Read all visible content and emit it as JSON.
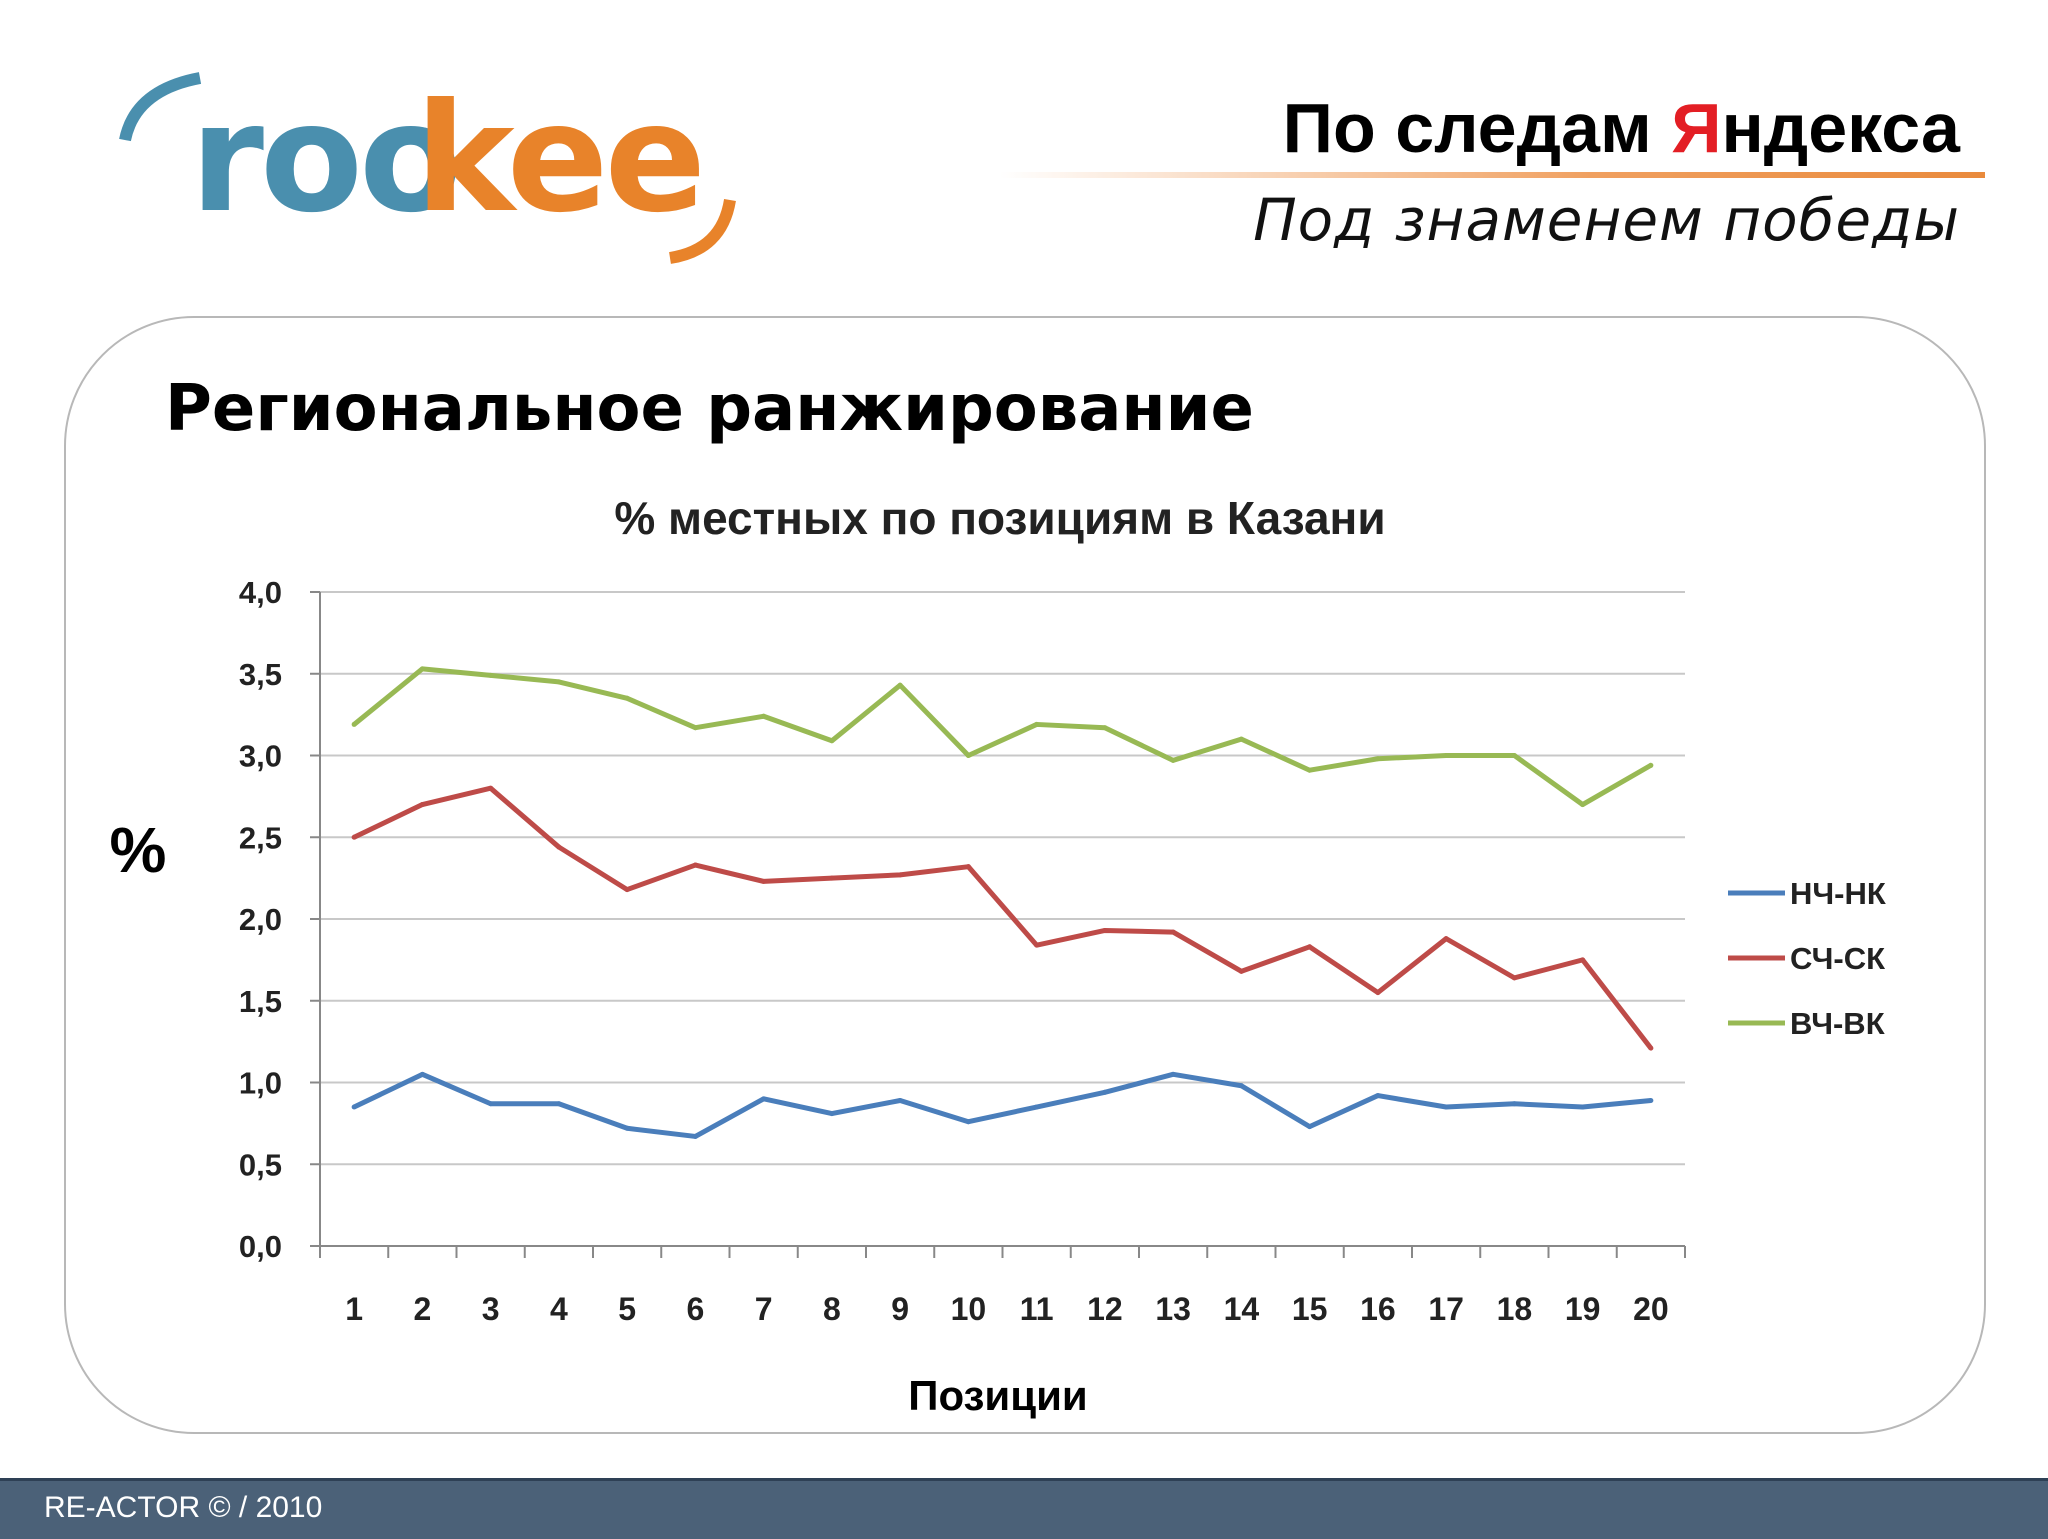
{
  "logo": {
    "text_part1": "roo",
    "text_part2": "kee",
    "color_blue": "#4a8fae",
    "color_orange": "#e8832a"
  },
  "header": {
    "title_before": "По следам ",
    "title_accent": "Я",
    "title_after": "ндекса",
    "subtitle": "Под знаменем победы"
  },
  "slide": {
    "heading": "Региональное ранжирование"
  },
  "footer": {
    "text": "RE-ACTOR © / 2010"
  },
  "chart_data": {
    "type": "line",
    "title": "% местных по позициям в Казани",
    "xlabel": "Позиции",
    "ylabel": "%",
    "ylim": [
      0,
      4
    ],
    "y_ticks": [
      "0,0",
      "0,5",
      "1,0",
      "1,5",
      "2,0",
      "2,5",
      "3,0",
      "3,5",
      "4,0"
    ],
    "y_tick_values": [
      0,
      0.5,
      1,
      1.5,
      2,
      2.5,
      3,
      3.5,
      4
    ],
    "categories": [
      "1",
      "2",
      "3",
      "4",
      "5",
      "6",
      "7",
      "8",
      "9",
      "10",
      "11",
      "12",
      "13",
      "14",
      "15",
      "16",
      "17",
      "18",
      "19",
      "20"
    ],
    "grid": true,
    "legend_position": "right",
    "series": [
      {
        "name": "НЧ-НК",
        "color": "#4a7ebb",
        "values": [
          0.85,
          1.05,
          0.87,
          0.87,
          0.72,
          0.67,
          0.9,
          0.81,
          0.89,
          0.76,
          0.85,
          0.94,
          1.05,
          0.98,
          0.73,
          0.92,
          0.85,
          0.87,
          0.85,
          0.89
        ]
      },
      {
        "name": "СЧ-СК",
        "color": "#be4b48",
        "values": [
          2.5,
          2.7,
          2.8,
          2.44,
          2.18,
          2.33,
          2.23,
          2.25,
          2.27,
          2.32,
          1.84,
          1.93,
          1.92,
          1.68,
          1.83,
          1.55,
          1.88,
          1.64,
          1.75,
          1.21
        ]
      },
      {
        "name": "ВЧ-ВК",
        "color": "#98b954",
        "values": [
          3.19,
          3.53,
          3.49,
          3.45,
          3.35,
          3.17,
          3.24,
          3.09,
          3.43,
          3.0,
          3.19,
          3.17,
          2.97,
          3.1,
          2.91,
          2.98,
          3.0,
          3.0,
          2.7,
          2.94
        ]
      }
    ]
  }
}
